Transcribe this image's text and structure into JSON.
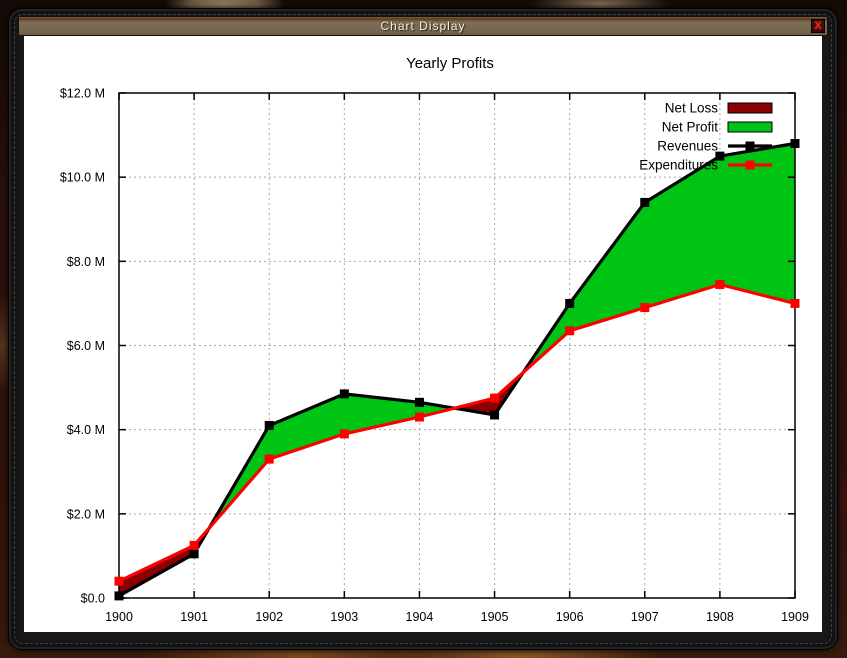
{
  "window": {
    "title": "Chart Display",
    "close_button": "X"
  },
  "chart_data": {
    "type": "area",
    "title": "Yearly Profits",
    "x": [
      1900,
      1901,
      1902,
      1903,
      1904,
      1905,
      1906,
      1907,
      1908,
      1909
    ],
    "series": [
      {
        "name": "Revenues",
        "type": "line",
        "color": "#000000",
        "marker": "square",
        "values": [
          0.05,
          1.05,
          4.1,
          4.85,
          4.65,
          4.35,
          7.0,
          9.4,
          10.5,
          10.8
        ]
      },
      {
        "name": "Expenditures",
        "type": "line",
        "color": "#ff0000",
        "marker": "square",
        "values": [
          0.4,
          1.25,
          3.3,
          3.9,
          4.3,
          4.75,
          6.35,
          6.9,
          7.45,
          7.0
        ]
      }
    ],
    "fills": [
      {
        "name": "Net Loss",
        "color": "#8b0000",
        "rule": "Expenditures above Revenues"
      },
      {
        "name": "Net Profit",
        "color": "#00c414",
        "rule": "Revenues above Expenditures"
      }
    ],
    "legend": [
      {
        "label": "Net Loss",
        "swatch": "box",
        "color": "#8b0000"
      },
      {
        "label": "Net Profit",
        "swatch": "box",
        "color": "#00c414"
      },
      {
        "label": "Revenues",
        "swatch": "line-marker",
        "color": "#000000"
      },
      {
        "label": "Expenditures",
        "swatch": "line-marker",
        "color": "#ff0000"
      }
    ],
    "legend_position": "top-right",
    "grid": true,
    "xlim": [
      1900,
      1909
    ],
    "ylim": [
      0,
      12
    ],
    "xticks": [
      {
        "value": 1900,
        "label": "1900"
      },
      {
        "value": 1901,
        "label": "1901"
      },
      {
        "value": 1902,
        "label": "1902"
      },
      {
        "value": 1903,
        "label": "1903"
      },
      {
        "value": 1904,
        "label": "1904"
      },
      {
        "value": 1905,
        "label": "1905"
      },
      {
        "value": 1906,
        "label": "1906"
      },
      {
        "value": 1907,
        "label": "1907"
      },
      {
        "value": 1908,
        "label": "1908"
      },
      {
        "value": 1909,
        "label": "1909"
      }
    ],
    "yticks": [
      {
        "value": 0,
        "label": "$0.0"
      },
      {
        "value": 2,
        "label": "$2.0 M"
      },
      {
        "value": 4,
        "label": "$4.0 M"
      },
      {
        "value": 6,
        "label": "$6.0 M"
      },
      {
        "value": 8,
        "label": "$8.0 M"
      },
      {
        "value": 10,
        "label": "$10.0 M"
      },
      {
        "value": 12,
        "label": "$12.0 M"
      }
    ]
  }
}
